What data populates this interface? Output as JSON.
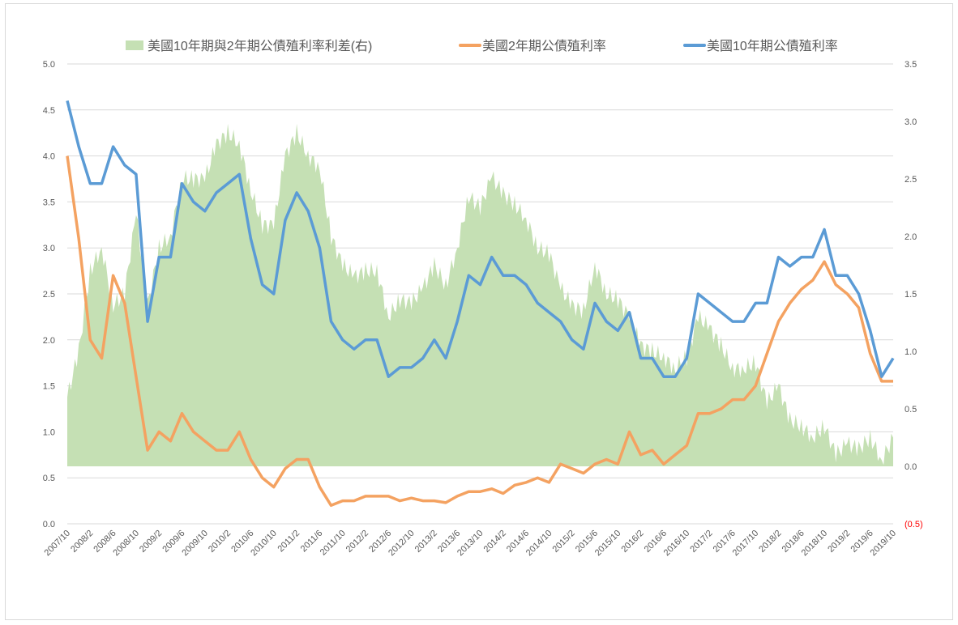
{
  "chart_data": {
    "type": "line",
    "title": "",
    "legend_position": "top",
    "grid": true,
    "x_ticks": [
      "2007/10",
      "2008/2",
      "2008/6",
      "2008/10",
      "2009/2",
      "2009/6",
      "2009/10",
      "2010/2",
      "2010/6",
      "2010/10",
      "2011/2",
      "2011/6",
      "2011/10",
      "2012/2",
      "2012/6",
      "2012/10",
      "2013/2",
      "2013/6",
      "2013/10",
      "2014/2",
      "2014/6",
      "2014/10",
      "2015/2",
      "2015/6",
      "2015/10",
      "2016/2",
      "2016/6",
      "2016/10",
      "2017/2",
      "2017/6",
      "2017/10",
      "2018/2",
      "2018/6",
      "2018/10",
      "2019/2",
      "2019/6",
      "2019/10"
    ],
    "x": [
      "2007/10",
      "2007/12",
      "2008/2",
      "2008/4",
      "2008/6",
      "2008/8",
      "2008/10",
      "2008/12",
      "2009/2",
      "2009/4",
      "2009/6",
      "2009/8",
      "2009/10",
      "2009/12",
      "2010/2",
      "2010/4",
      "2010/6",
      "2010/8",
      "2010/10",
      "2010/12",
      "2011/2",
      "2011/4",
      "2011/6",
      "2011/8",
      "2011/10",
      "2011/12",
      "2012/2",
      "2012/4",
      "2012/6",
      "2012/8",
      "2012/10",
      "2012/12",
      "2013/2",
      "2013/4",
      "2013/6",
      "2013/8",
      "2013/10",
      "2013/12",
      "2014/2",
      "2014/4",
      "2014/6",
      "2014/8",
      "2014/10",
      "2014/12",
      "2015/2",
      "2015/4",
      "2015/6",
      "2015/8",
      "2015/10",
      "2015/12",
      "2016/2",
      "2016/4",
      "2016/6",
      "2016/8",
      "2016/10",
      "2016/12",
      "2017/2",
      "2017/4",
      "2017/6",
      "2017/8",
      "2017/10",
      "2017/12",
      "2018/2",
      "2018/4",
      "2018/6",
      "2018/8",
      "2018/10",
      "2018/12",
      "2019/2",
      "2019/4",
      "2019/6",
      "2019/8",
      "2019/10"
    ],
    "left_axis": {
      "ylim": [
        0,
        5
      ],
      "ticks": [
        "0.0",
        "0.5",
        "1.0",
        "1.5",
        "2.0",
        "2.5",
        "3.0",
        "3.5",
        "4.0",
        "4.5",
        "5.0"
      ]
    },
    "right_axis": {
      "ylim": [
        -0.5,
        3.5
      ],
      "ticks": [
        "(0.5)",
        "0.0",
        "0.5",
        "1.0",
        "1.5",
        "2.0",
        "2.5",
        "3.0",
        "3.5"
      ],
      "negative_color": "#ff0000"
    },
    "series": [
      {
        "name": "美國10年期與2年期公債殖利率利差(右)",
        "type": "area",
        "axis": "right",
        "color": "#c5e0b4",
        "values": [
          0.6,
          1.0,
          1.7,
          1.9,
          1.4,
          1.5,
          2.2,
          1.4,
          1.9,
          2.0,
          2.5,
          2.5,
          2.5,
          2.8,
          2.9,
          2.8,
          2.4,
          2.1,
          2.1,
          2.7,
          2.9,
          2.7,
          2.6,
          2.0,
          1.75,
          1.65,
          1.7,
          1.7,
          1.3,
          1.45,
          1.42,
          1.55,
          1.75,
          1.57,
          1.9,
          2.35,
          2.25,
          2.52,
          2.37,
          2.28,
          2.15,
          1.9,
          1.85,
          1.55,
          1.4,
          1.35,
          1.75,
          1.5,
          1.45,
          1.3,
          1.05,
          1.0,
          0.95,
          0.85,
          0.95,
          1.3,
          1.2,
          1.05,
          0.85,
          0.85,
          0.9,
          0.55,
          0.7,
          0.4,
          0.35,
          0.25,
          0.35,
          0.1,
          0.2,
          0.15,
          0.25,
          0.05,
          0.25
        ]
      },
      {
        "name": "美國2年期公債殖利率",
        "type": "line",
        "axis": "left",
        "color": "#f4a261",
        "values": [
          4.0,
          3.1,
          2.0,
          1.8,
          2.7,
          2.4,
          1.6,
          0.8,
          1.0,
          0.9,
          1.2,
          1.0,
          0.9,
          0.8,
          0.8,
          1.0,
          0.7,
          0.5,
          0.4,
          0.6,
          0.7,
          0.7,
          0.4,
          0.2,
          0.25,
          0.25,
          0.3,
          0.3,
          0.3,
          0.25,
          0.28,
          0.25,
          0.25,
          0.23,
          0.3,
          0.35,
          0.35,
          0.38,
          0.33,
          0.42,
          0.45,
          0.5,
          0.45,
          0.65,
          0.6,
          0.55,
          0.65,
          0.7,
          0.65,
          1.0,
          0.75,
          0.8,
          0.65,
          0.75,
          0.85,
          1.2,
          1.2,
          1.25,
          1.35,
          1.35,
          1.5,
          1.85,
          2.2,
          2.4,
          2.55,
          2.65,
          2.85,
          2.6,
          2.5,
          2.35,
          1.85,
          1.55,
          1.55
        ]
      },
      {
        "name": "美國10年期公債殖利率",
        "type": "line",
        "axis": "left",
        "color": "#5b9bd5",
        "values": [
          4.6,
          4.1,
          3.7,
          3.7,
          4.1,
          3.9,
          3.8,
          2.2,
          2.9,
          2.9,
          3.7,
          3.5,
          3.4,
          3.6,
          3.7,
          3.8,
          3.1,
          2.6,
          2.5,
          3.3,
          3.6,
          3.4,
          3.0,
          2.2,
          2.0,
          1.9,
          2.0,
          2.0,
          1.6,
          1.7,
          1.7,
          1.8,
          2.0,
          1.8,
          2.2,
          2.7,
          2.6,
          2.9,
          2.7,
          2.7,
          2.6,
          2.4,
          2.3,
          2.2,
          2.0,
          1.9,
          2.4,
          2.2,
          2.1,
          2.3,
          1.8,
          1.8,
          1.6,
          1.6,
          1.8,
          2.5,
          2.4,
          2.3,
          2.2,
          2.2,
          2.4,
          2.4,
          2.9,
          2.8,
          2.9,
          2.9,
          3.2,
          2.7,
          2.7,
          2.5,
          2.1,
          1.6,
          1.8
        ]
      }
    ]
  }
}
